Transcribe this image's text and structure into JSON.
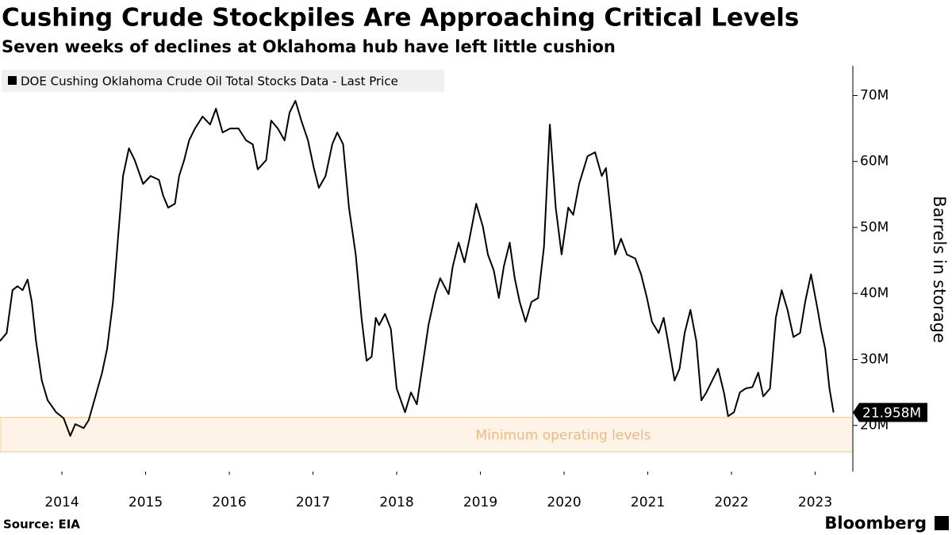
{
  "chart_data": {
    "type": "line",
    "title": "Cushing Crude Stockpiles Are Approaching Critical Levels",
    "subtitle": "Seven weeks of declines at Oklahoma hub have left little cushion",
    "y_label": "Barrels in storage",
    "source": "Source: EIA",
    "brand": "Bloomberg",
    "legend_position": "top-left",
    "band": {
      "label": "Minimum operating levels",
      "range": [
        16,
        21.2
      ],
      "color": "#f5b77a"
    },
    "last_value_label": "21.958M",
    "x": [
      2013.76,
      2013.84,
      2013.91,
      2013.97,
      2014.03,
      2014.09,
      2014.14,
      2014.19,
      2014.26,
      2014.33,
      2014.43,
      2014.52,
      2014.6,
      2014.66,
      2014.76,
      2014.82,
      2014.9,
      2014.98,
      2015.04,
      2015.11,
      2015.17,
      2015.23,
      2015.3,
      2015.37,
      2015.47,
      2015.56,
      2015.66,
      2015.71,
      2015.77,
      2015.85,
      2015.9,
      2015.96,
      2016.02,
      2016.09,
      2016.18,
      2016.27,
      2016.34,
      2016.42,
      2016.51,
      2016.61,
      2016.7,
      2016.78,
      2016.84,
      2016.94,
      2017.0,
      2017.08,
      2017.16,
      2017.22,
      2017.29,
      2017.36,
      2017.44,
      2017.51,
      2017.57,
      2017.65,
      2017.73,
      2017.79,
      2017.86,
      2017.93,
      2018.01,
      2018.08,
      2018.14,
      2018.2,
      2018.25,
      2018.29,
      2018.36,
      2018.43,
      2018.5,
      2018.6,
      2018.67,
      2018.74,
      2018.81,
      2018.88,
      2018.96,
      2019.02,
      2019.12,
      2019.17,
      2019.24,
      2019.31,
      2019.37,
      2019.45,
      2019.53,
      2019.59,
      2019.66,
      2019.72,
      2019.78,
      2019.85,
      2019.91,
      2019.97,
      2020.04,
      2020.11,
      2020.19,
      2020.26,
      2020.33,
      2020.4,
      2020.47,
      2020.55,
      2020.61,
      2020.68,
      2020.78,
      2020.87,
      2020.95,
      2021.0,
      2021.06,
      2021.11,
      2021.18,
      2021.25,
      2021.35,
      2021.42,
      2021.49,
      2021.55,
      2021.63,
      2021.69,
      2021.74,
      2021.82,
      2021.88,
      2021.94,
      2022.01,
      2022.08,
      2022.14,
      2022.2,
      2022.27,
      2022.34,
      2022.41,
      2022.46,
      2022.53,
      2022.6,
      2022.67,
      2022.75,
      2022.82,
      2022.88,
      2022.96,
      2023.03,
      2023.1,
      2023.17,
      2023.24,
      2023.32,
      2023.38,
      2023.45,
      2023.53,
      2023.57,
      2023.62,
      2023.67,
      2023.72
    ],
    "series": [
      {
        "name": "DOE Cushing Oklahoma Crude Oil Total Stocks Data - Last Price",
        "color": "#000000",
        "values": [
          32.8,
          34.0,
          40.5,
          41.1,
          40.5,
          42.1,
          38.7,
          32.8,
          26.8,
          23.8,
          22.0,
          21.1,
          18.4,
          20.2,
          19.6,
          20.8,
          24.4,
          28.0,
          31.6,
          38.7,
          48.3,
          57.8,
          62.0,
          60.2,
          56.6,
          57.8,
          57.2,
          54.8,
          53.0,
          53.6,
          57.8,
          60.2,
          63.2,
          65.0,
          66.8,
          65.6,
          68.0,
          64.4,
          65.0,
          65.0,
          63.2,
          62.6,
          58.8,
          60.2,
          66.2,
          65.0,
          63.2,
          67.4,
          69.2,
          66.2,
          63.2,
          59.0,
          56.0,
          57.8,
          62.6,
          64.4,
          62.6,
          53.0,
          45.9,
          36.3,
          29.8,
          30.4,
          36.3,
          35.2,
          36.9,
          34.6,
          25.6,
          22.0,
          25.0,
          23.2,
          29.2,
          35.2,
          39.9,
          42.3,
          39.9,
          44.1,
          47.7,
          44.7,
          48.3,
          53.6,
          50.1,
          45.9,
          43.5,
          39.3,
          44.1,
          47.7,
          42.3,
          38.7,
          35.7,
          38.7,
          39.3,
          47.1,
          65.6,
          53.0,
          45.9,
          53.0,
          51.9,
          56.6,
          60.8,
          61.4,
          57.8,
          59.0,
          51.9,
          45.9,
          48.3,
          45.9,
          45.3,
          42.9,
          39.3,
          35.7,
          34.0,
          36.3,
          32.8,
          26.8,
          28.6,
          34.0,
          37.5,
          32.8,
          23.8,
          25.0,
          26.8,
          28.6,
          25.0,
          21.4,
          22.0,
          25.0,
          25.6,
          25.8,
          28.0,
          24.4,
          25.6,
          36.3,
          40.5,
          37.5,
          33.4,
          34.0,
          38.7,
          42.9,
          37.5,
          34.6,
          31.6,
          25.6,
          21.958
        ]
      }
    ],
    "xlim": [
      2013.76,
      2023.95
    ],
    "xticks": [
      {
        "value": 2014.5,
        "label": "2014"
      },
      {
        "value": 2015.5,
        "label": "2015"
      },
      {
        "value": 2016.5,
        "label": "2016"
      },
      {
        "value": 2017.5,
        "label": "2017"
      },
      {
        "value": 2018.5,
        "label": "2018"
      },
      {
        "value": 2019.5,
        "label": "2019"
      },
      {
        "value": 2020.5,
        "label": "2020"
      },
      {
        "value": 2021.5,
        "label": "2021"
      },
      {
        "value": 2022.5,
        "label": "2022"
      },
      {
        "value": 2023.5,
        "label": "2023"
      }
    ],
    "ylim": [
      13,
      74.5
    ],
    "yticks": [
      {
        "value": 20,
        "label": "20M"
      },
      {
        "value": 30,
        "label": "30M"
      },
      {
        "value": 40,
        "label": "40M"
      },
      {
        "value": 50,
        "label": "50M"
      },
      {
        "value": 60,
        "label": "60M"
      },
      {
        "value": 70,
        "label": "70M"
      }
    ]
  }
}
